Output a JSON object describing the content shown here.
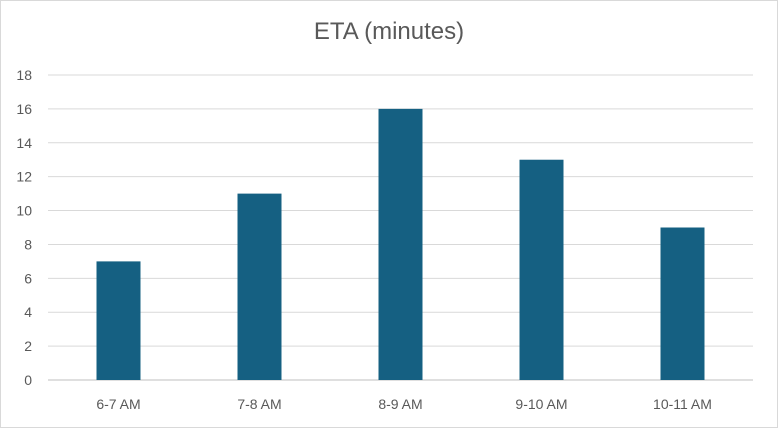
{
  "chart_data": {
    "type": "bar",
    "title": "ETA (minutes)",
    "categories": [
      "6-7 AM",
      "7-8 AM",
      "8-9 AM",
      "9-10 AM",
      "10-11 AM"
    ],
    "series": [
      {
        "values": [
          7,
          11,
          16,
          13,
          9
        ]
      }
    ],
    "ylim": [
      0,
      18
    ],
    "yticks": [
      0,
      2,
      4,
      6,
      8,
      10,
      12,
      14,
      16,
      18
    ],
    "xlabel": "",
    "ylabel": "",
    "grid": true,
    "legend": "none",
    "bar_color": "#156082",
    "grid_color": "#d9d9d9",
    "axis_color": "#bfbfbf",
    "text_color": "#595959"
  }
}
